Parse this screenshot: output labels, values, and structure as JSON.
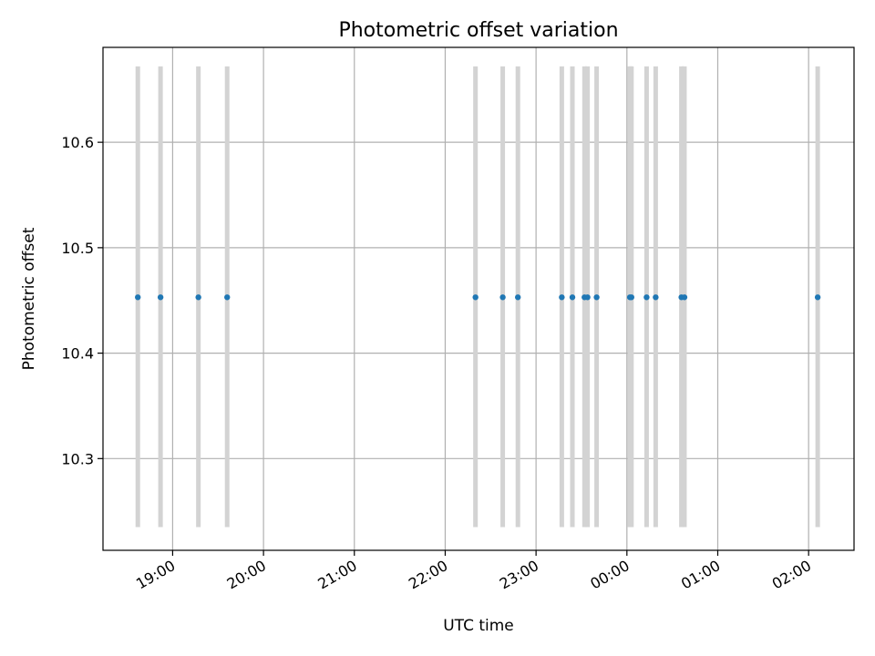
{
  "chart_data": {
    "type": "scatter",
    "title": "Photometric offset variation",
    "xlabel": "UTC time",
    "ylabel": "Photometric offset",
    "grid": true,
    "colors": {
      "point": "#1f77b4",
      "band": "#d3d3d3",
      "grid": "#b0b0b0"
    },
    "xlim": [
      "18:14",
      "02:30"
    ],
    "ylim": [
      10.213,
      10.69
    ],
    "xticks": [
      {
        "label": "19:00",
        "t": "19:00"
      },
      {
        "label": "20:00",
        "t": "20:00"
      },
      {
        "label": "21:00",
        "t": "21:00"
      },
      {
        "label": "22:00",
        "t": "22:00"
      },
      {
        "label": "23:00",
        "t": "23:00"
      },
      {
        "label": "00:00",
        "t": "00:00"
      },
      {
        "label": "01:00",
        "t": "01:00"
      },
      {
        "label": "02:00",
        "t": "02:00"
      }
    ],
    "yticks": [
      {
        "label": "10.3",
        "v": 10.3
      },
      {
        "label": "10.4",
        "v": 10.4
      },
      {
        "label": "10.5",
        "v": 10.5
      },
      {
        "label": "10.6",
        "v": 10.6
      }
    ],
    "band_range": [
      10.235,
      10.672
    ],
    "points": [
      {
        "t": "18:37",
        "y": 10.453
      },
      {
        "t": "18:52",
        "y": 10.453
      },
      {
        "t": "19:17",
        "y": 10.453
      },
      {
        "t": "19:36",
        "y": 10.453
      },
      {
        "t": "22:20",
        "y": 10.453
      },
      {
        "t": "22:38",
        "y": 10.453
      },
      {
        "t": "22:48",
        "y": 10.453
      },
      {
        "t": "23:17",
        "y": 10.453
      },
      {
        "t": "23:24",
        "y": 10.453
      },
      {
        "t": "23:32",
        "y": 10.453
      },
      {
        "t": "23:34",
        "y": 10.453
      },
      {
        "t": "23:40",
        "y": 10.453
      },
      {
        "t": "00:02",
        "y": 10.453
      },
      {
        "t": "00:03",
        "y": 10.453
      },
      {
        "t": "00:13",
        "y": 10.453
      },
      {
        "t": "00:19",
        "y": 10.453
      },
      {
        "t": "00:36",
        "y": 10.453
      },
      {
        "t": "00:38",
        "y": 10.453
      },
      {
        "t": "02:06",
        "y": 10.453
      }
    ]
  }
}
